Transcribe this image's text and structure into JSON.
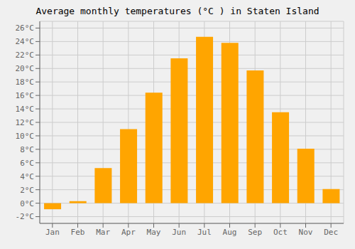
{
  "chart_data": {
    "type": "bar",
    "title": "Average monthly temperatures (°C ) in Staten Island",
    "categories": [
      "Jan",
      "Feb",
      "Mar",
      "Apr",
      "May",
      "Jun",
      "Jul",
      "Aug",
      "Sep",
      "Oct",
      "Nov",
      "Dec"
    ],
    "values": [
      -0.9,
      0.3,
      5.2,
      11.0,
      16.4,
      21.5,
      24.7,
      23.8,
      19.7,
      13.5,
      8.1,
      2.1
    ],
    "color": "#FFA500",
    "ylim": [
      -3,
      27
    ],
    "yticks": [
      {
        "value": -2,
        "label": "-2°C"
      },
      {
        "value": 0,
        "label": "0°C"
      },
      {
        "value": 2,
        "label": "2°C"
      },
      {
        "value": 4,
        "label": "4°C"
      },
      {
        "value": 6,
        "label": "6°C"
      },
      {
        "value": 8,
        "label": "8°C"
      },
      {
        "value": 10,
        "label": "10°C"
      },
      {
        "value": 12,
        "label": "12°C"
      },
      {
        "value": 14,
        "label": "14°C"
      },
      {
        "value": 16,
        "label": "16°C"
      },
      {
        "value": 18,
        "label": "18°C"
      },
      {
        "value": 20,
        "label": "20°C"
      },
      {
        "value": 22,
        "label": "22°C"
      },
      {
        "value": 24,
        "label": "24°C"
      },
      {
        "value": 26,
        "label": "26°C"
      }
    ],
    "grid": true
  }
}
